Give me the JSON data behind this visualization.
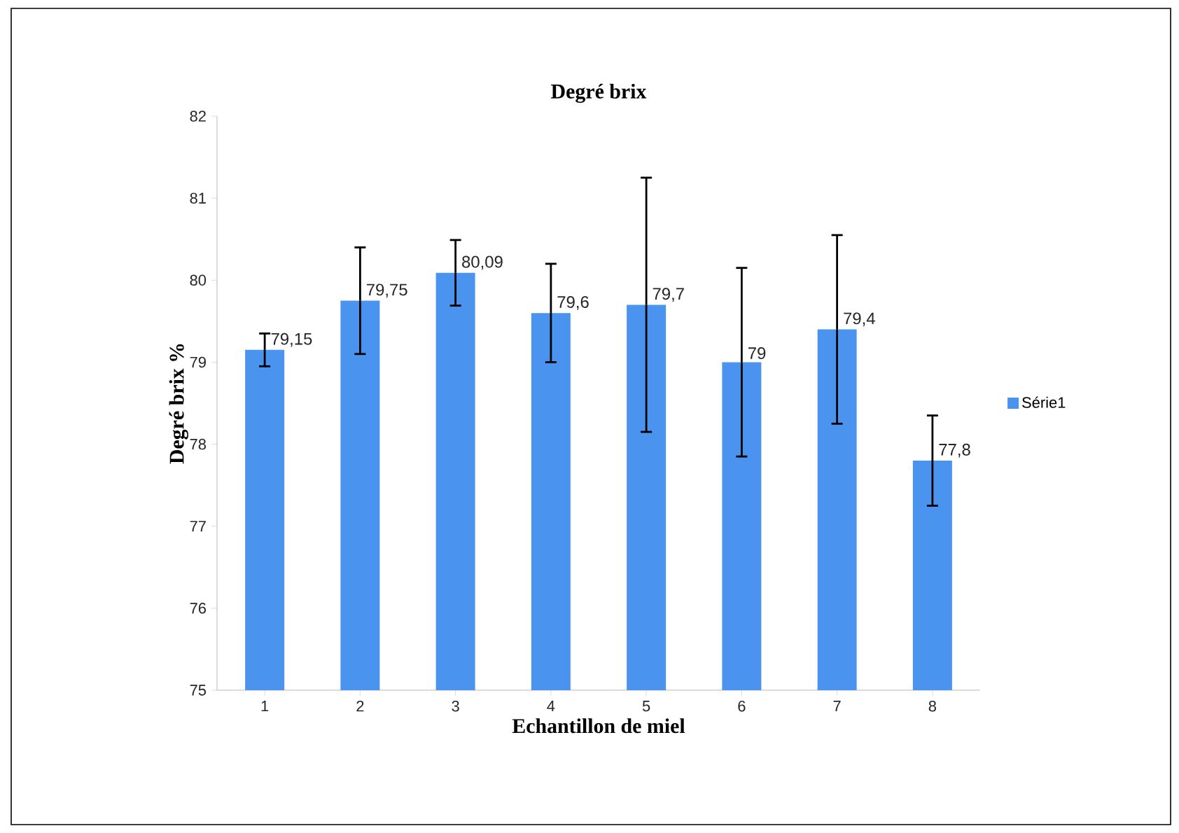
{
  "chart_data": {
    "type": "bar",
    "title": "Degré brix",
    "xlabel": "Echantillon de miel",
    "ylabel": "Degré brix %",
    "categories": [
      "1",
      "2",
      "3",
      "4",
      "5",
      "6",
      "7",
      "8"
    ],
    "series": [
      {
        "name": "Série1",
        "color": "#4a94ef",
        "values": [
          79.15,
          79.75,
          80.09,
          79.6,
          79.7,
          79.0,
          79.4,
          77.8
        ],
        "errors": [
          0.2,
          0.65,
          0.4,
          0.6,
          1.55,
          1.15,
          1.15,
          0.55
        ],
        "value_labels": [
          "79,15",
          "79,75",
          "80,09",
          "79,6",
          "79,7",
          "79",
          "79,4",
          "77,8"
        ]
      }
    ],
    "ylim": [
      75,
      82
    ],
    "yticks": [
      75,
      76,
      77,
      78,
      79,
      80,
      81,
      82
    ],
    "legend": "right"
  }
}
